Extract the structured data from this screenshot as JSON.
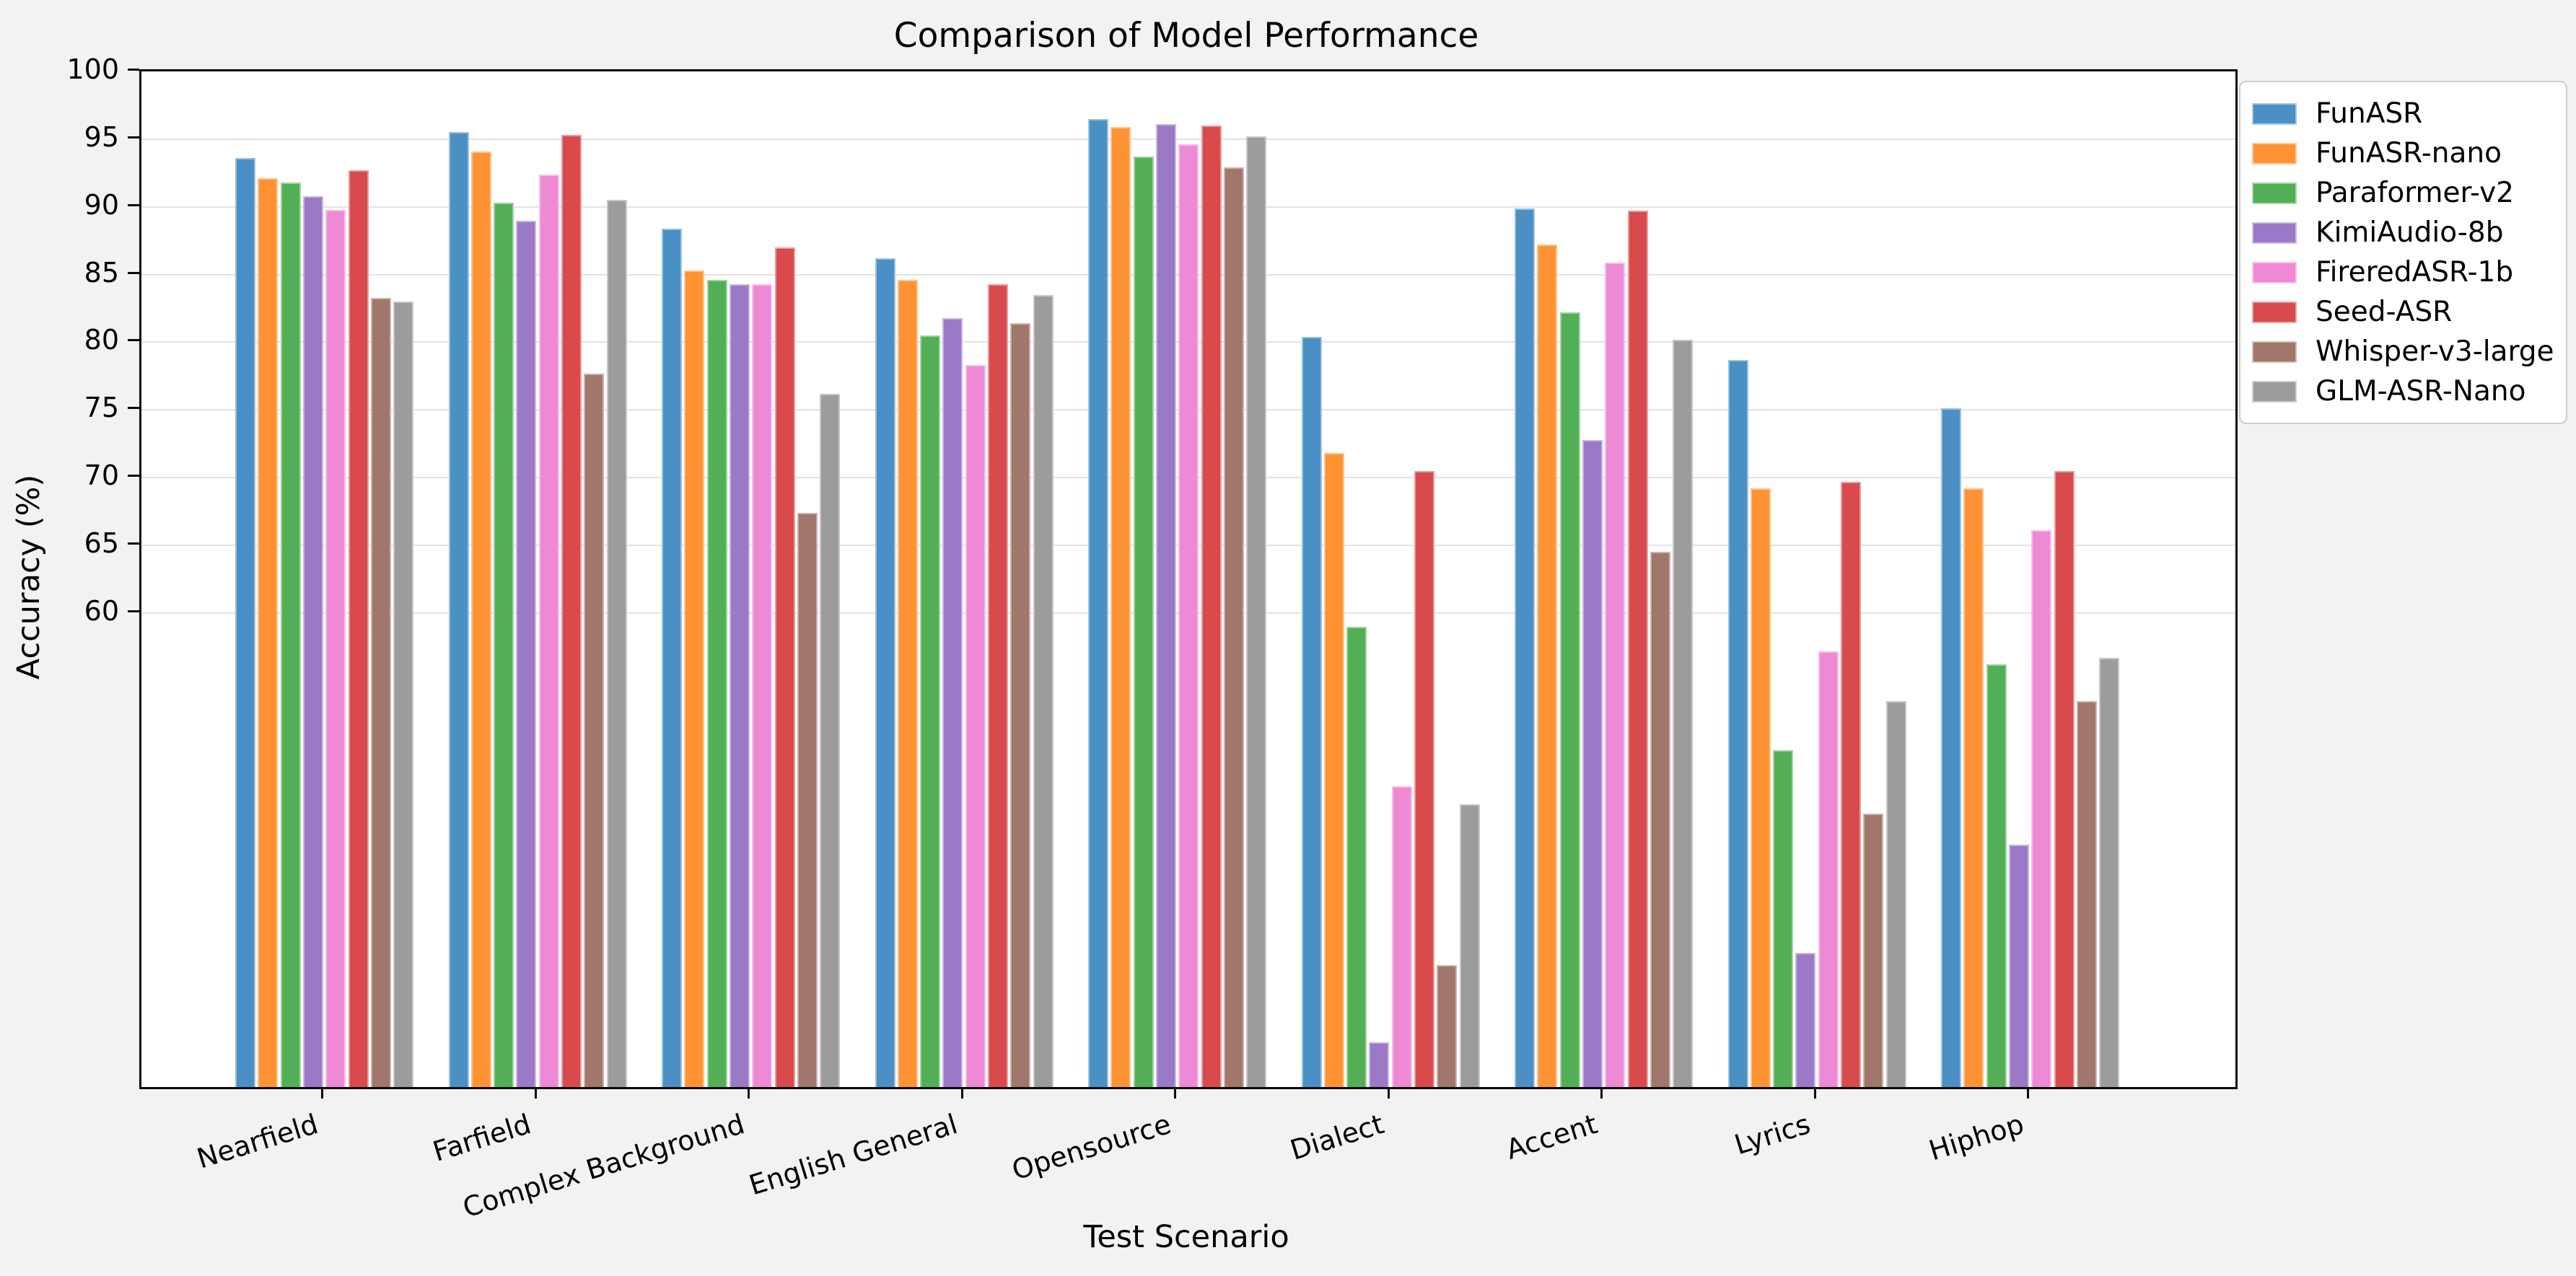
{
  "title": "Comparison of Model Performance",
  "chart_data": {
    "type": "bar",
    "title": "Comparison of Model Performance",
    "xlabel": "Test Scenario",
    "ylabel": "Accuracy (%)",
    "ylim": [
      25,
      100
    ],
    "yticks": [
      100,
      95,
      90,
      85,
      80,
      75,
      70,
      65,
      60
    ],
    "grid": "horizontal gridlines only at labeled ticks (60-100)",
    "legend_position": "outside upper right",
    "categories": [
      "Nearfield",
      "Farfield",
      "Complex Background",
      "English General",
      "Opensource",
      "Dialect",
      "Accent",
      "Lyrics",
      "Hiphop"
    ],
    "series": [
      {
        "name": "FunASR",
        "color": "#4a90c4",
        "values": [
          93.6,
          95.5,
          88.4,
          86.2,
          96.5,
          80.4,
          89.9,
          78.7,
          75.1
        ]
      },
      {
        "name": "FunASR-nano",
        "color": "#ff9333",
        "values": [
          92.1,
          94.1,
          85.3,
          84.6,
          95.9,
          71.8,
          87.2,
          69.2,
          69.2
        ]
      },
      {
        "name": "Paraformer-v2",
        "color": "#52af55",
        "values": [
          91.8,
          90.3,
          84.6,
          80.5,
          93.7,
          59.0,
          82.2,
          49.9,
          56.2
        ]
      },
      {
        "name": "KimiAudio-8b",
        "color": "#9c79c6",
        "values": [
          90.8,
          89.0,
          84.3,
          81.8,
          96.1,
          28.3,
          72.8,
          34.9,
          42.9
        ]
      },
      {
        "name": "FireredASR-1b",
        "color": "#ee8ad5",
        "values": [
          89.8,
          92.4,
          84.3,
          78.3,
          94.6,
          47.2,
          85.9,
          57.2,
          66.1
        ]
      },
      {
        "name": "Seed-ASR",
        "color": "#d94a4d",
        "values": [
          92.7,
          95.3,
          87.0,
          84.3,
          96.0,
          70.5,
          89.7,
          69.7,
          70.5
        ]
      },
      {
        "name": "Whisper-v3-large",
        "color": "#a1766b",
        "values": [
          83.3,
          77.7,
          67.4,
          81.4,
          92.9,
          34.0,
          64.5,
          45.2,
          53.5
        ]
      },
      {
        "name": "GLM-ASR-Nano",
        "color": "#9c9c9c",
        "values": [
          83.0,
          90.5,
          76.2,
          83.5,
          95.2,
          45.9,
          80.2,
          53.5,
          56.7
        ]
      }
    ]
  }
}
